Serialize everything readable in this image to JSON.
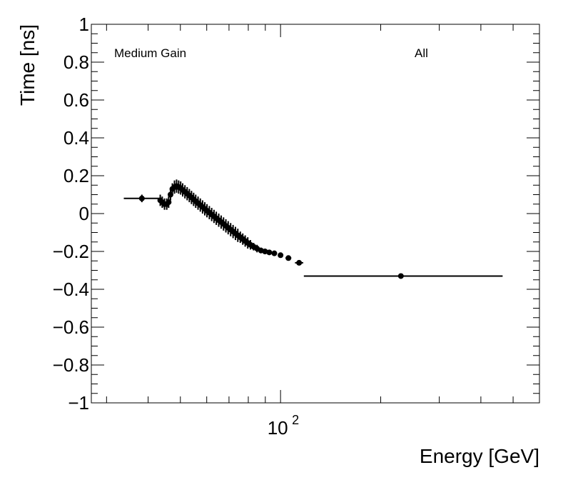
{
  "chart_data": {
    "type": "scatter",
    "title": "",
    "xlabel": "Energy [GeV]",
    "ylabel": "Time [ns]",
    "x_scale": "log",
    "xlim": [
      27,
      600
    ],
    "ylim": [
      -1,
      1
    ],
    "grid": false,
    "annotations": [
      {
        "id": "gain",
        "text": "Medium Gain"
      },
      {
        "id": "sel",
        "text": "All"
      }
    ],
    "y_ticks": [
      {
        "value": 1,
        "label": "1"
      },
      {
        "value": 0.8,
        "label": "0.8"
      },
      {
        "value": 0.6,
        "label": "0.6"
      },
      {
        "value": 0.4,
        "label": "0.4"
      },
      {
        "value": 0.2,
        "label": "0.2"
      },
      {
        "value": 0,
        "label": "0"
      },
      {
        "value": -0.2,
        "label": "−0.2"
      },
      {
        "value": -0.4,
        "label": "−0.4"
      },
      {
        "value": -0.6,
        "label": "−0.6"
      },
      {
        "value": -0.8,
        "label": "−0.8"
      },
      {
        "value": -1,
        "label": "−1"
      }
    ],
    "x_ticks": [
      {
        "value": 100,
        "base": "10",
        "exponent": "2"
      }
    ],
    "series": [
      {
        "points": [
          {
            "x": 38.3,
            "y": 0.08,
            "xerr": [
              33.8,
              43.5
            ],
            "yerr": 0.02
          },
          {
            "x": 43.5,
            "y": 0.07,
            "xerr": [
              43.3,
              43.7
            ],
            "yerr": 0.03
          },
          {
            "x": 44.1,
            "y": 0.06,
            "xerr": [
              43.8,
              44.4
            ],
            "yerr": 0.03
          },
          {
            "x": 44.8,
            "y": 0.05,
            "xerr": [
              44.5,
              45.1
            ],
            "yerr": 0.03
          },
          {
            "x": 45.5,
            "y": 0.05,
            "xerr": [
              45.2,
              45.8
            ],
            "yerr": 0.03
          },
          {
            "x": 46.1,
            "y": 0.06,
            "xerr": [
              45.8,
              46.4
            ],
            "yerr": 0.03
          },
          {
            "x": 46.7,
            "y": 0.1,
            "xerr": [
              46.4,
              47.0
            ],
            "yerr": 0.03
          },
          {
            "x": 47.3,
            "y": 0.13,
            "xerr": [
              47.0,
              47.6
            ],
            "yerr": 0.03
          },
          {
            "x": 48.0,
            "y": 0.14,
            "xerr": [
              47.7,
              48.3
            ],
            "yerr": 0.035
          },
          {
            "x": 48.7,
            "y": 0.145,
            "xerr": [
              48.4,
              49.0
            ],
            "yerr": 0.035
          },
          {
            "x": 49.4,
            "y": 0.14,
            "xerr": [
              49.1,
              49.7
            ],
            "yerr": 0.035
          },
          {
            "x": 50.1,
            "y": 0.135,
            "xerr": [
              49.8,
              50.4
            ],
            "yerr": 0.035
          },
          {
            "x": 50.8,
            "y": 0.125,
            "xerr": [
              50.5,
              51.1
            ],
            "yerr": 0.035
          },
          {
            "x": 51.6,
            "y": 0.115,
            "xerr": [
              51.3,
              51.9
            ],
            "yerr": 0.035
          },
          {
            "x": 52.4,
            "y": 0.105,
            "xerr": [
              52.1,
              52.7
            ],
            "yerr": 0.035
          },
          {
            "x": 53.2,
            "y": 0.095,
            "xerr": [
              52.9,
              53.5
            ],
            "yerr": 0.035
          },
          {
            "x": 54.0,
            "y": 0.085,
            "xerr": [
              53.7,
              54.3
            ],
            "yerr": 0.035
          },
          {
            "x": 54.8,
            "y": 0.075,
            "xerr": [
              54.5,
              55.1
            ],
            "yerr": 0.035
          },
          {
            "x": 55.6,
            "y": 0.065,
            "xerr": [
              55.3,
              55.9
            ],
            "yerr": 0.035
          },
          {
            "x": 56.5,
            "y": 0.055,
            "xerr": [
              56.2,
              56.8
            ],
            "yerr": 0.035
          },
          {
            "x": 57.4,
            "y": 0.045,
            "xerr": [
              57.1,
              57.7
            ],
            "yerr": 0.035
          },
          {
            "x": 58.3,
            "y": 0.035,
            "xerr": [
              58.0,
              58.6
            ],
            "yerr": 0.035
          },
          {
            "x": 59.2,
            "y": 0.025,
            "xerr": [
              58.9,
              59.5
            ],
            "yerr": 0.035
          },
          {
            "x": 60.1,
            "y": 0.015,
            "xerr": [
              59.8,
              60.4
            ],
            "yerr": 0.035
          },
          {
            "x": 61.1,
            "y": 0.005,
            "xerr": [
              60.8,
              61.4
            ],
            "yerr": 0.035
          },
          {
            "x": 62.1,
            "y": -0.005,
            "xerr": [
              61.8,
              62.4
            ],
            "yerr": 0.035
          },
          {
            "x": 63.1,
            "y": -0.015,
            "xerr": [
              62.8,
              63.4
            ],
            "yerr": 0.035
          },
          {
            "x": 64.1,
            "y": -0.025,
            "xerr": [
              63.8,
              64.4
            ],
            "yerr": 0.035
          },
          {
            "x": 65.2,
            "y": -0.035,
            "xerr": [
              64.9,
              65.5
            ],
            "yerr": 0.035
          },
          {
            "x": 66.3,
            "y": -0.045,
            "xerr": [
              66.0,
              66.6
            ],
            "yerr": 0.035
          },
          {
            "x": 67.4,
            "y": -0.055,
            "xerr": [
              67.1,
              67.7
            ],
            "yerr": 0.035
          },
          {
            "x": 68.5,
            "y": -0.065,
            "xerr": [
              68.2,
              68.8
            ],
            "yerr": 0.035
          },
          {
            "x": 69.6,
            "y": -0.075,
            "xerr": [
              69.3,
              69.9
            ],
            "yerr": 0.035
          },
          {
            "x": 70.8,
            "y": -0.085,
            "xerr": [
              70.5,
              71.1
            ],
            "yerr": 0.035
          },
          {
            "x": 72.0,
            "y": -0.095,
            "xerr": [
              71.7,
              72.3
            ],
            "yerr": 0.035
          },
          {
            "x": 73.2,
            "y": -0.105,
            "xerr": [
              72.9,
              73.5
            ],
            "yerr": 0.035
          },
          {
            "x": 74.4,
            "y": -0.115,
            "xerr": [
              74.1,
              74.7
            ],
            "yerr": 0.035
          },
          {
            "x": 75.7,
            "y": -0.125,
            "xerr": [
              75.4,
              76.0
            ],
            "yerr": 0.03
          },
          {
            "x": 77.0,
            "y": -0.135,
            "xerr": [
              76.7,
              77.3
            ],
            "yerr": 0.03
          },
          {
            "x": 78.3,
            "y": -0.145,
            "xerr": [
              78.0,
              78.6
            ],
            "yerr": 0.03
          },
          {
            "x": 79.7,
            "y": -0.155,
            "xerr": [
              79.4,
              80.0
            ],
            "yerr": 0.03
          },
          {
            "x": 81.2,
            "y": -0.165,
            "xerr": [
              80.8,
              81.6
            ],
            "yerr": 0.025
          },
          {
            "x": 83.0,
            "y": -0.175,
            "xerr": [
              82.5,
              83.5
            ],
            "yerr": 0.02
          },
          {
            "x": 85.0,
            "y": -0.185,
            "xerr": [
              84.4,
              85.6
            ],
            "yerr": 0.02
          },
          {
            "x": 87.3,
            "y": -0.195,
            "xerr": [
              86.6,
              88.0
            ],
            "yerr": 0.015
          },
          {
            "x": 89.8,
            "y": -0.2,
            "xerr": [
              89.0,
              90.6
            ],
            "yerr": 0.015
          },
          {
            "x": 92.5,
            "y": -0.205,
            "xerr": [
              91.6,
              93.4
            ],
            "yerr": 0.012
          },
          {
            "x": 95.8,
            "y": -0.21,
            "xerr": [
              94.6,
              97.0
            ],
            "yerr": 0.01
          },
          {
            "x": 100.0,
            "y": -0.22,
            "xerr": [
              98.5,
              101.5
            ],
            "yerr": 0.01
          },
          {
            "x": 105.6,
            "y": -0.235,
            "xerr": [
              103.5,
              107.7
            ],
            "yerr": 0.01
          },
          {
            "x": 113.7,
            "y": -0.26,
            "xerr": [
              110.5,
              117.0
            ],
            "yerr": 0.01
          },
          {
            "x": 230.0,
            "y": -0.33,
            "xerr": [
              117.5,
              465.0
            ],
            "yerr": 0.005
          }
        ]
      }
    ]
  }
}
